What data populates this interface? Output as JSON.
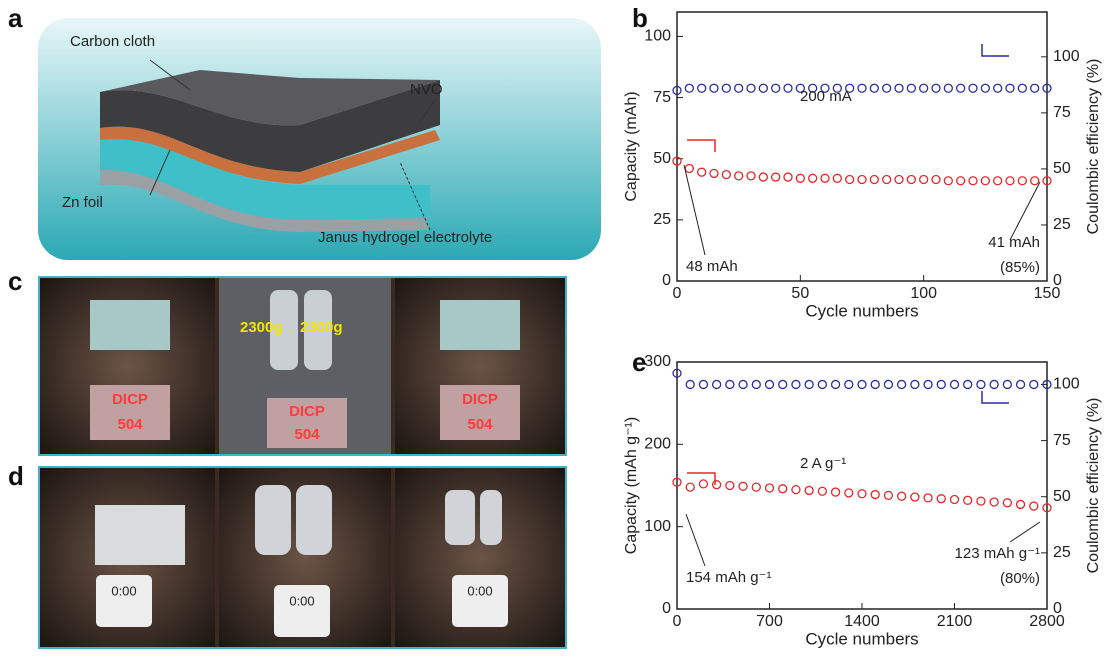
{
  "panel_labels": [
    "a",
    "b",
    "c",
    "d",
    "e"
  ],
  "illustration": {
    "labels": [
      "Carbon cloth",
      "NVO",
      "Zn foil",
      "Janus hydrogel electrolyte"
    ]
  },
  "photos": {
    "weights": [
      "2300g",
      "2300g"
    ],
    "led_text": [
      "DICP",
      "504"
    ],
    "timer_text": "0:00"
  },
  "chart_data": [
    {
      "type": "line",
      "marker": "open-circle",
      "xlabel": "Cycle numbers",
      "ylabel": "Capacity (mAh)",
      "y2label": "Coulombic efficiency (%)",
      "annotations": [
        "200 mA",
        "48 mAh",
        "41 mAh",
        "(85%)"
      ],
      "xlim": [
        0,
        150
      ],
      "xticks": [
        0,
        50,
        100,
        150
      ],
      "ylim": [
        0,
        110
      ],
      "yticks": [
        0,
        25,
        50,
        75,
        100
      ],
      "y2lim": [
        0,
        120
      ],
      "y2ticks": [
        0,
        25,
        50,
        75,
        100
      ],
      "x": [
        0,
        5,
        10,
        15,
        20,
        25,
        30,
        35,
        40,
        45,
        50,
        55,
        60,
        65,
        70,
        75,
        80,
        85,
        90,
        95,
        100,
        105,
        110,
        115,
        120,
        125,
        130,
        135,
        140,
        145,
        150
      ],
      "series": [
        {
          "color": "#e8262b",
          "values": [
            49,
            46,
            44.5,
            44,
            43.5,
            43,
            43,
            42.5,
            42.5,
            42.5,
            42,
            42,
            42,
            42,
            41.5,
            41.5,
            41.5,
            41.5,
            41.5,
            41.5,
            41.5,
            41.5,
            41,
            41,
            41,
            41,
            41,
            41,
            41,
            41,
            41
          ]
        },
        {
          "color": "#2b2f9e",
          "axis": "y2",
          "values": [
            85,
            86,
            86,
            86,
            86,
            86,
            86,
            86,
            86,
            86,
            86,
            86,
            86,
            86,
            86,
            86,
            86,
            86,
            86,
            86,
            86,
            86,
            86,
            86,
            86,
            86,
            86,
            86,
            86,
            86,
            86
          ]
        }
      ]
    },
    {
      "type": "line",
      "marker": "open-circle",
      "xlabel": "Cycle numbers",
      "ylabel": "Capacity (mAh g⁻¹)",
      "y2label": "Coulombic efficiency (%)",
      "annotations": [
        "2 A g⁻¹",
        "154 mAh g⁻¹",
        "123 mAh g⁻¹",
        "(80%)"
      ],
      "xlim": [
        0,
        2800
      ],
      "xticks": [
        0,
        700,
        1400,
        2100,
        2800
      ],
      "ylim": [
        0,
        300
      ],
      "yticks": [
        0,
        100,
        200,
        300
      ],
      "y2lim": [
        0,
        110
      ],
      "y2ticks": [
        0,
        25,
        50,
        75,
        100
      ],
      "x": [
        0,
        100,
        200,
        300,
        400,
        500,
        600,
        700,
        800,
        900,
        1000,
        1100,
        1200,
        1300,
        1400,
        1500,
        1600,
        1700,
        1800,
        1900,
        2000,
        2100,
        2200,
        2300,
        2400,
        2500,
        2600,
        2700,
        2800
      ],
      "series": [
        {
          "color": "#e8262b",
          "values": [
            154,
            148,
            152,
            151,
            150,
            149,
            148,
            147,
            146,
            145,
            144,
            143,
            142,
            141,
            140,
            139,
            138,
            137,
            136,
            135,
            134,
            133,
            132,
            131,
            130,
            129,
            127,
            125,
            123
          ]
        },
        {
          "color": "#2b2f9e",
          "axis": "y2",
          "values": [
            105,
            100,
            100,
            100,
            100,
            100,
            100,
            100,
            100,
            100,
            100,
            100,
            100,
            100,
            100,
            100,
            100,
            100,
            100,
            100,
            100,
            100,
            100,
            100,
            100,
            100,
            100,
            100,
            100
          ]
        }
      ]
    }
  ]
}
